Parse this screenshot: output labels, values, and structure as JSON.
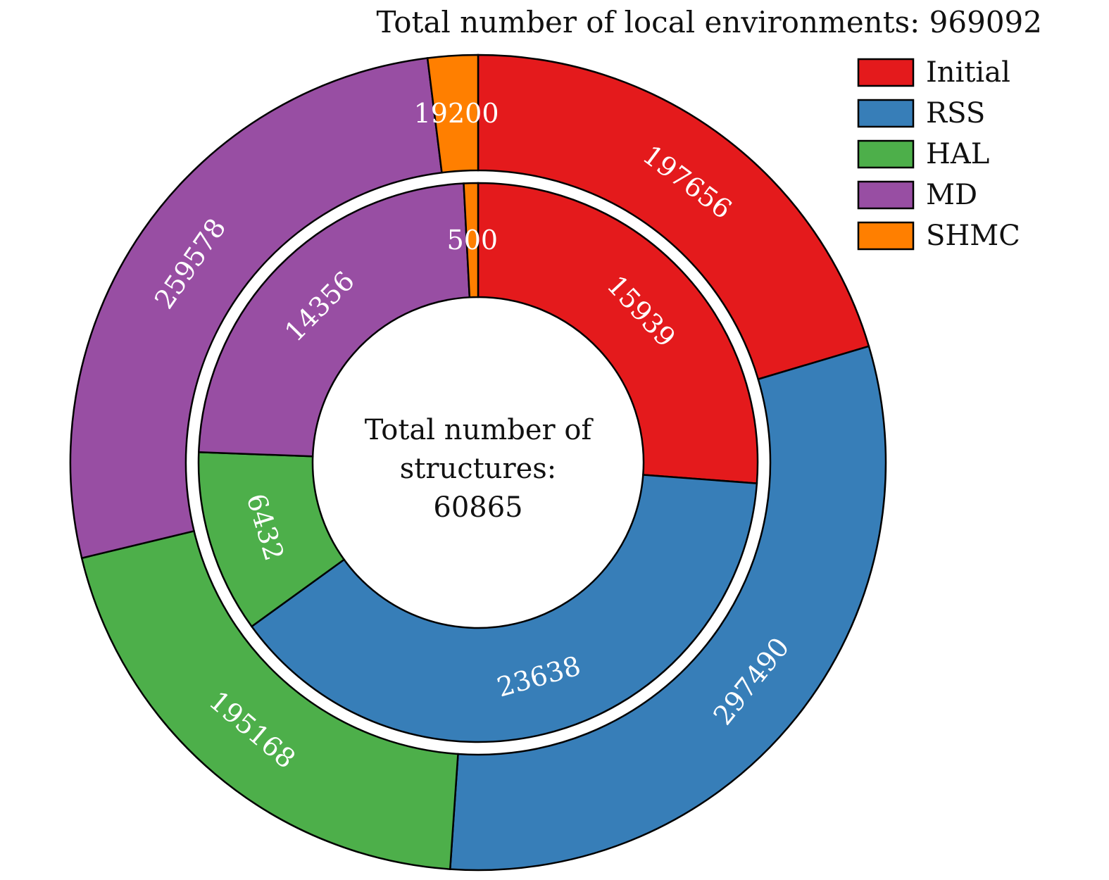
{
  "chart_data": {
    "type": "pie",
    "subtype": "nested-donut",
    "title": "Total number of local environments: 969092",
    "center_text": [
      "Total number of",
      "structures:",
      "60865"
    ],
    "categories": [
      "Initial",
      "RSS",
      "HAL",
      "MD",
      "SHMC"
    ],
    "colors": [
      "#e41a1c",
      "#377eb8",
      "#4daf4a",
      "#984ea3",
      "#ff7f00"
    ],
    "series": [
      {
        "ring": "outer",
        "values": [
          197656,
          297490,
          195168,
          259578,
          19200
        ]
      },
      {
        "ring": "inner",
        "values": [
          15939,
          23638,
          6432,
          14356,
          500
        ]
      }
    ],
    "start": "top",
    "direction": "clockwise",
    "legend_position": "top-right"
  }
}
